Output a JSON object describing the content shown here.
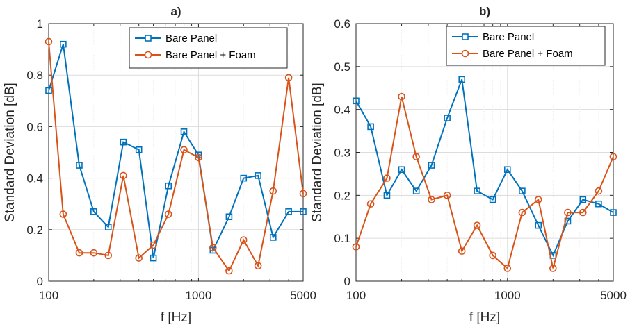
{
  "chart_data": [
    {
      "type": "line",
      "title": "a)",
      "xlabel": "f [Hz]",
      "ylabel": "Standard Deviation [dB]",
      "xscale": "log",
      "xlim": [
        100,
        5000
      ],
      "ylim": [
        0,
        1
      ],
      "xticks": [
        100,
        1000,
        5000
      ],
      "xtick_labels": [
        "100",
        "1000",
        "5000"
      ],
      "yticks": [
        0,
        0.2,
        0.4,
        0.6,
        0.8,
        1
      ],
      "ytick_labels": [
        "0",
        "0.2",
        "0.4",
        "0.6",
        "0.8",
        "1"
      ],
      "grid": true,
      "legend_position": "top-right",
      "x": [
        100,
        125,
        160,
        200,
        250,
        315,
        400,
        500,
        630,
        800,
        1000,
        1250,
        1600,
        2000,
        2500,
        3150,
        4000,
        5000
      ],
      "series": [
        {
          "name": "Bare Panel",
          "color": "#0072BD",
          "marker": "square",
          "values": [
            0.74,
            0.92,
            0.45,
            0.27,
            0.21,
            0.54,
            0.51,
            0.09,
            0.37,
            0.58,
            0.49,
            0.12,
            0.25,
            0.4,
            0.41,
            0.17,
            0.27,
            0.27
          ]
        },
        {
          "name": "Bare Panel + Foam",
          "color": "#D95319",
          "marker": "circle",
          "values": [
            0.93,
            0.26,
            0.11,
            0.11,
            0.1,
            0.41,
            0.09,
            0.14,
            0.26,
            0.51,
            0.48,
            0.13,
            0.04,
            0.16,
            0.06,
            0.35,
            0.79,
            0.34
          ]
        }
      ]
    },
    {
      "type": "line",
      "title": "b)",
      "xlabel": "f [Hz]",
      "ylabel": "Standard Deviation [dB]",
      "xscale": "log",
      "xlim": [
        100,
        5000
      ],
      "ylim": [
        0,
        0.6
      ],
      "xticks": [
        100,
        1000,
        5000
      ],
      "xtick_labels": [
        "100",
        "1000",
        "5000"
      ],
      "yticks": [
        0,
        0.1,
        0.2,
        0.3,
        0.4,
        0.5,
        0.6
      ],
      "ytick_labels": [
        "0",
        "0.1",
        "0.2",
        "0.3",
        "0.4",
        "0.5",
        "0.6"
      ],
      "grid": true,
      "legend_position": "top-right",
      "x": [
        100,
        125,
        160,
        200,
        250,
        315,
        400,
        500,
        630,
        800,
        1000,
        1250,
        1600,
        2000,
        2500,
        3150,
        4000,
        5000
      ],
      "series": [
        {
          "name": "Bare Panel",
          "color": "#0072BD",
          "marker": "square",
          "values": [
            0.42,
            0.36,
            0.2,
            0.26,
            0.21,
            0.27,
            0.38,
            0.47,
            0.21,
            0.19,
            0.26,
            0.21,
            0.13,
            0.06,
            0.14,
            0.19,
            0.18,
            0.16
          ]
        },
        {
          "name": "Bare Panel + Foam",
          "color": "#D95319",
          "marker": "circle",
          "values": [
            0.08,
            0.18,
            0.24,
            0.43,
            0.29,
            0.19,
            0.2,
            0.07,
            0.13,
            0.06,
            0.03,
            0.16,
            0.19,
            0.03,
            0.16,
            0.16,
            0.21,
            0.29
          ]
        }
      ]
    }
  ]
}
